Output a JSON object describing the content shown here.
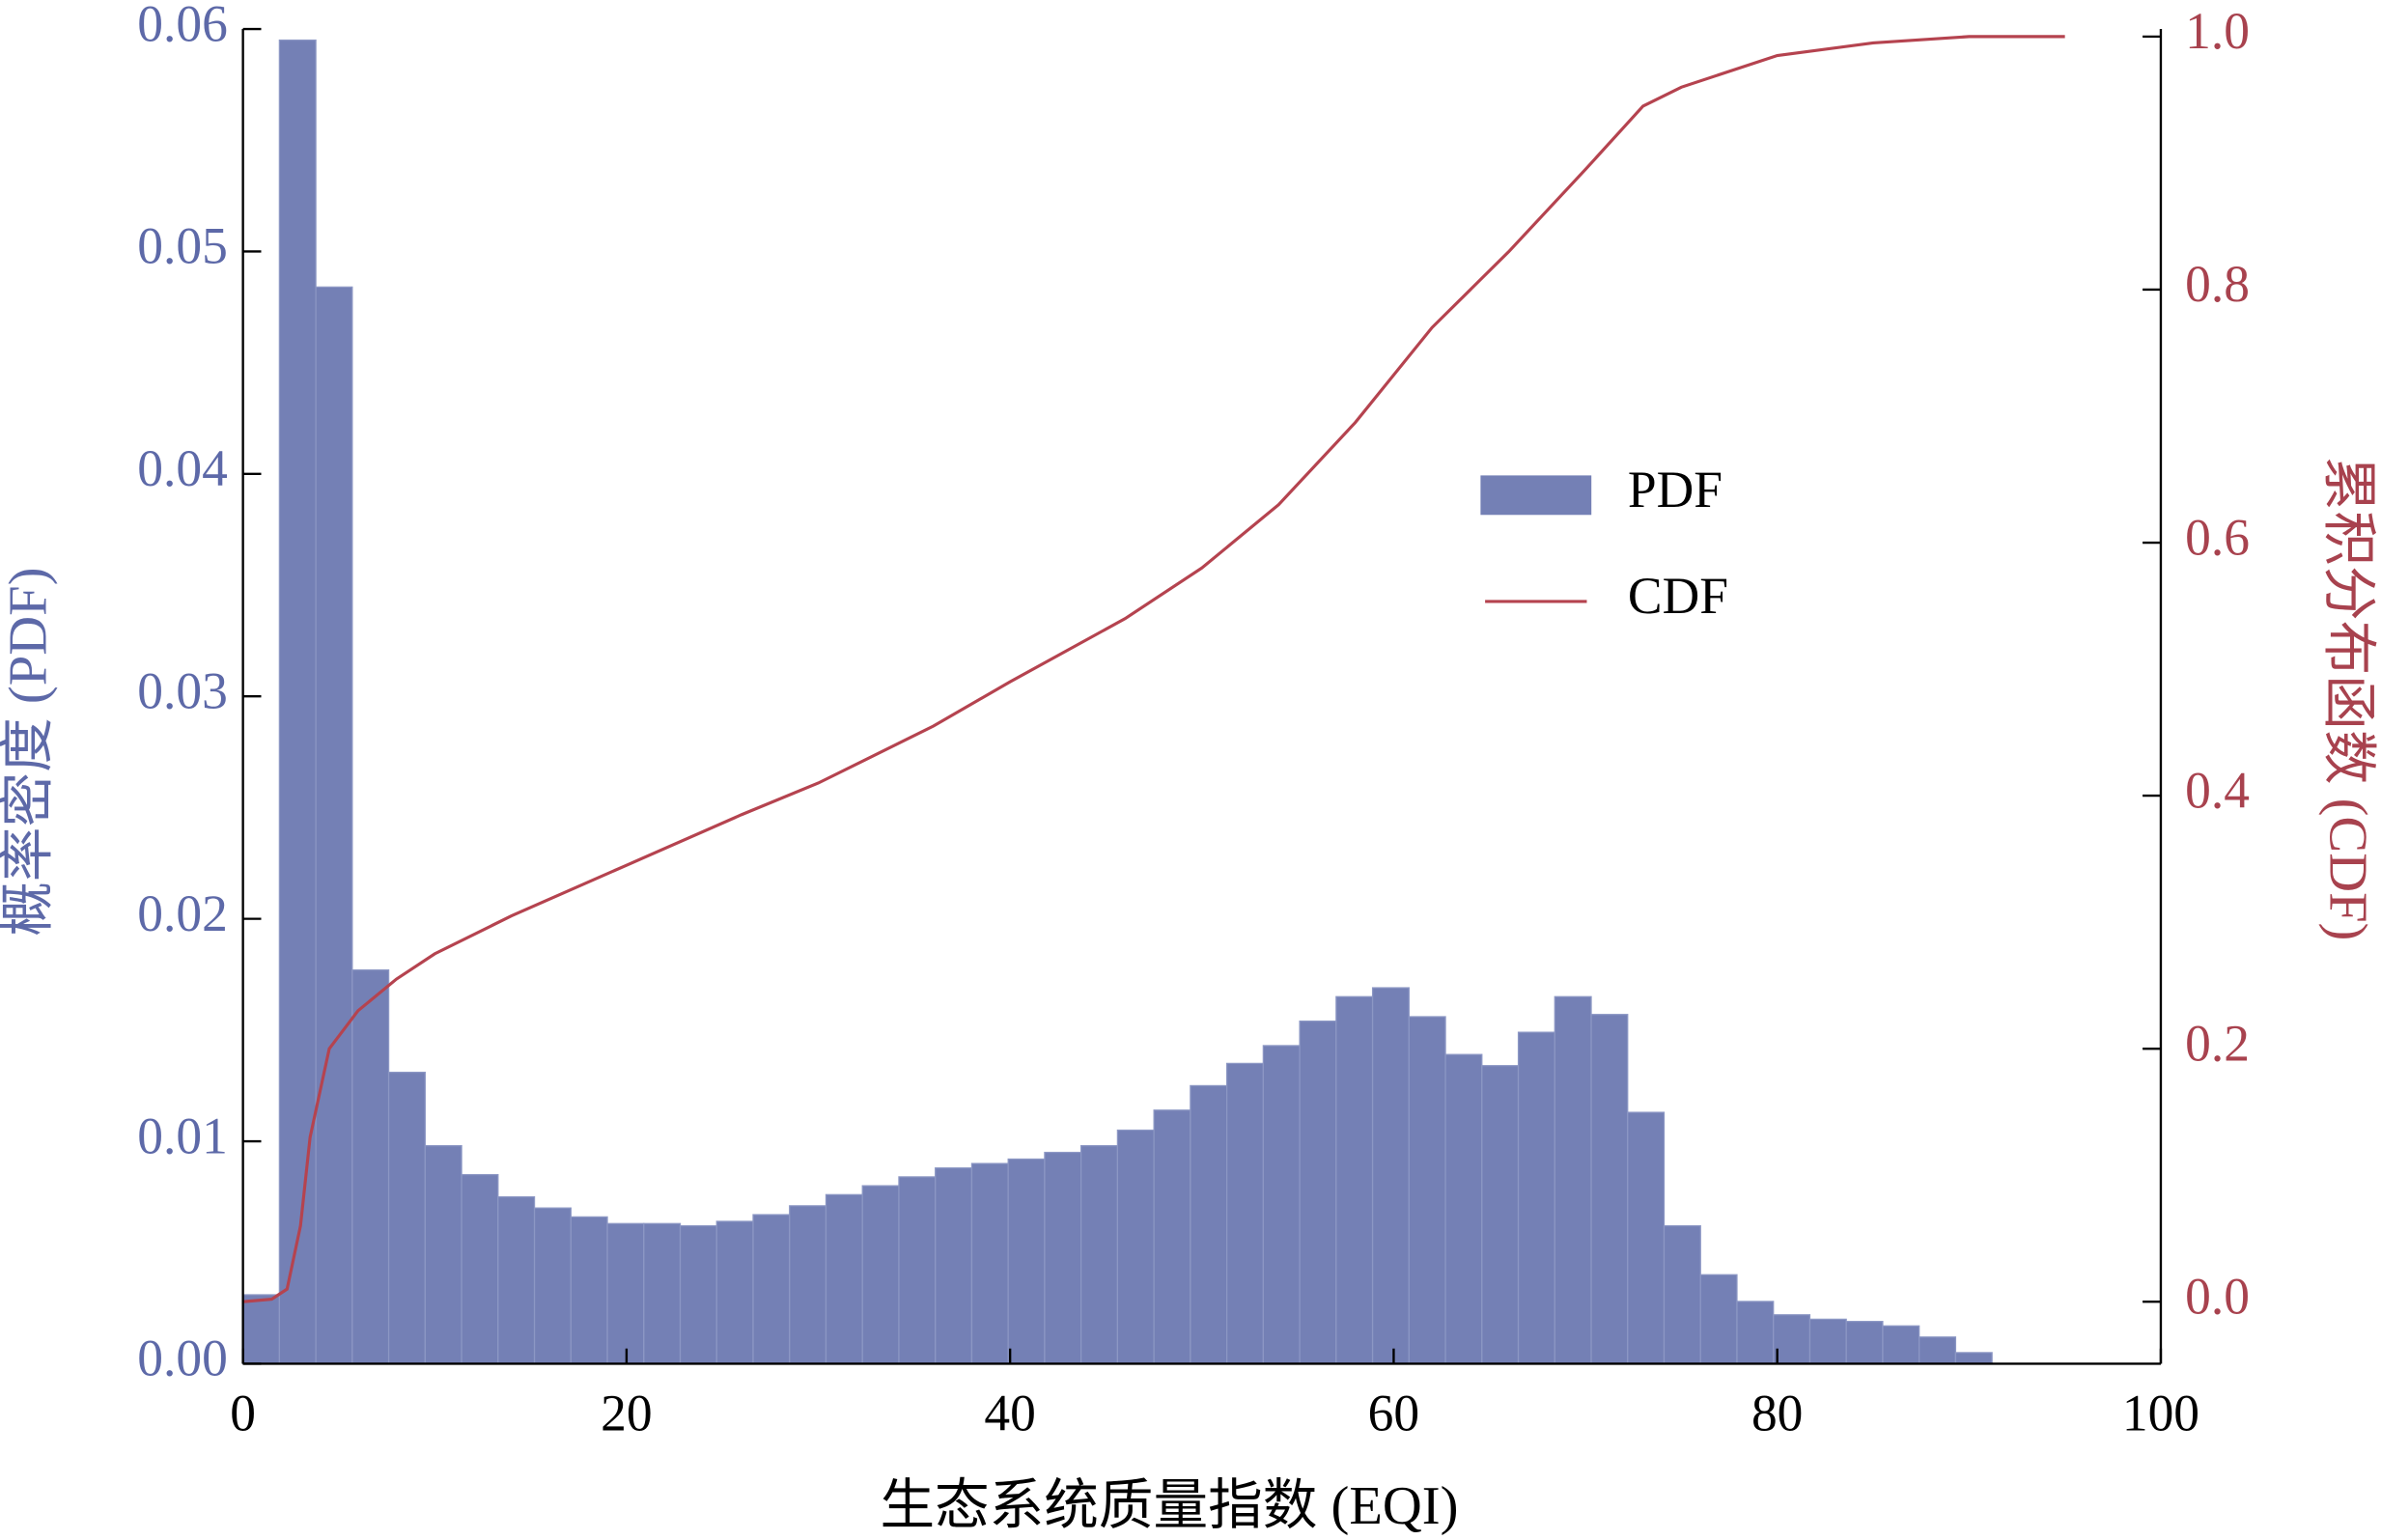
{
  "chart_data": {
    "type": "histogram",
    "x_label": "生态系统质量指数 (EQI)",
    "y_label": "概率密度 (PDF)",
    "y2_label": "累积分布函数 (CDF)",
    "xlim": [
      0,
      100
    ],
    "xticks": [
      0,
      20,
      40,
      60,
      80,
      100
    ],
    "ylim": [
      0,
      0.06
    ],
    "yticks": [
      {
        "value": 0,
        "label": "0.00"
      },
      {
        "value": 0.01,
        "label": "0.01"
      },
      {
        "value": 0.02,
        "label": "0.02"
      },
      {
        "value": 0.03,
        "label": "0.03"
      },
      {
        "value": 0.04,
        "label": "0.04"
      },
      {
        "value": 0.05,
        "label": "0.05"
      },
      {
        "value": 0.06,
        "label": "0.06"
      }
    ],
    "y2lim": [
      -0.049,
      1.006
    ],
    "y2ticks": [
      {
        "value": 0,
        "label": "0.0"
      },
      0.2,
      0.4,
      0.6,
      0.8,
      {
        "value": 1,
        "label": "1.0"
      }
    ],
    "y_label_color": "#5d69a8",
    "y2_label_color": "#a8424e",
    "legend": "right",
    "bins": [
      0,
      1.9,
      3.8,
      5.7,
      7.6,
      9.5,
      11.4,
      13.3,
      15.2,
      17.1,
      19,
      20.9,
      22.8,
      24.7,
      26.6,
      28.5,
      30.4,
      32.3,
      34.2,
      36.1,
      38,
      39.9,
      41.8,
      43.7,
      45.6,
      47.5,
      49.4,
      51.3,
      53.2,
      55.1,
      57,
      58.9,
      60.8,
      62.7,
      64.6,
      66.5,
      68.4,
      70.3,
      72.2,
      74.1,
      76,
      77.9,
      79.8,
      81.7,
      83.6,
      85.5,
      87.4,
      89.3,
      91.2
    ],
    "series": [
      {
        "name": "PDF",
        "color": "#7480b5",
        "values": [
          0.0031,
          0.0595,
          0.0484,
          0.0177,
          0.0131,
          0.0098,
          0.0085,
          0.0075,
          0.007,
          0.0066,
          0.0063,
          0.0063,
          0.0062,
          0.0064,
          0.0067,
          0.0071,
          0.0076,
          0.008,
          0.0084,
          0.0088,
          0.009,
          0.0092,
          0.0095,
          0.0098,
          0.0105,
          0.0114,
          0.0125,
          0.0135,
          0.0143,
          0.0154,
          0.0165,
          0.0169,
          0.0156,
          0.0139,
          0.0134,
          0.0149,
          0.0165,
          0.0157,
          0.0113,
          0.0062,
          0.004,
          0.0028,
          0.0022,
          0.002,
          0.0019,
          0.0017,
          0.0012,
          0.0005
        ]
      },
      {
        "name": "CDF",
        "color": "#b5434f",
        "type": "line",
        "axis": "y2",
        "x": [
          0,
          1.5,
          2.3,
          3,
          3.5,
          4.5,
          6,
          8,
          10,
          14,
          20,
          26,
          30,
          36,
          40,
          46,
          50,
          54,
          58,
          62,
          66,
          70,
          73,
          75,
          80,
          85,
          90,
          95
        ],
        "values": [
          0,
          0.002,
          0.01,
          0.06,
          0.13,
          0.2,
          0.23,
          0.255,
          0.275,
          0.305,
          0.345,
          0.385,
          0.41,
          0.455,
          0.49,
          0.54,
          0.58,
          0.63,
          0.695,
          0.77,
          0.83,
          0.895,
          0.945,
          0.96,
          0.985,
          0.995,
          1,
          1
        ]
      }
    ]
  }
}
